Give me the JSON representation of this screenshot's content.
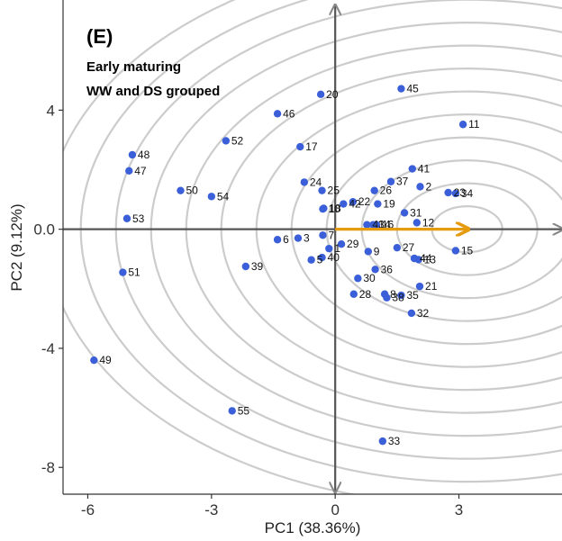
{
  "chart_data": {
    "type": "scatter",
    "panel_label": "(E)",
    "annotation_lines": [
      "Early maturing",
      "WW and DS grouped"
    ],
    "xlabel": "PC1 (38.36%)",
    "ylabel": "PC2 (9.12%)",
    "xlim": [
      -6.6,
      5.5
    ],
    "ylim": [
      -8.9,
      7.7
    ],
    "xticks": [
      -6,
      -3,
      0,
      3
    ],
    "yticks": [
      -8,
      -4,
      0,
      4
    ],
    "grid": false,
    "point_color": "#3b5fd9",
    "arrow_color": "#e69a0e",
    "circle_color": "#cccccc",
    "axis_line_color": "#555555",
    "loading_arrows": [
      {
        "from": [
          0,
          0
        ],
        "to": [
          3.2,
          0
        ],
        "color": "#e69a0e"
      },
      {
        "from": [
          0,
          0
        ],
        "to": [
          0,
          7.5
        ],
        "color": "#888888"
      },
      {
        "from": [
          0,
          0
        ],
        "to": [
          0,
          -8.8
        ],
        "color": "#888888"
      },
      {
        "from": [
          0,
          0
        ],
        "to": [
          5.5,
          0
        ],
        "color": "#888888"
      }
    ],
    "points": [
      {
        "id": "1",
        "x": -0.15,
        "y": -0.65
      },
      {
        "id": "2",
        "x": 2.06,
        "y": 1.43
      },
      {
        "id": "3",
        "x": -0.9,
        "y": -0.3
      },
      {
        "id": "4",
        "x": 1.92,
        "y": -0.98
      },
      {
        "id": "5",
        "x": -0.58,
        "y": -1.03
      },
      {
        "id": "6",
        "x": -1.4,
        "y": -0.35
      },
      {
        "id": "7",
        "x": -0.3,
        "y": -0.2
      },
      {
        "id": "8",
        "x": 1.2,
        "y": -2.18
      },
      {
        "id": "9",
        "x": 0.8,
        "y": -0.75
      },
      {
        "id": "10",
        "x": -0.3,
        "y": 0.68
      },
      {
        "id": "11",
        "x": 3.1,
        "y": 3.52
      },
      {
        "id": "12",
        "x": 1.98,
        "y": 0.22
      },
      {
        "id": "13",
        "x": 2.02,
        "y": -1.02
      },
      {
        "id": "14",
        "x": 0.92,
        "y": 0.15
      },
      {
        "id": "15",
        "x": 2.92,
        "y": -0.72
      },
      {
        "id": "16",
        "x": 1.0,
        "y": 0.15
      },
      {
        "id": "17",
        "x": -0.85,
        "y": 2.77
      },
      {
        "id": "18",
        "x": -0.28,
        "y": 0.7
      },
      {
        "id": "19",
        "x": 1.03,
        "y": 0.85
      },
      {
        "id": "20",
        "x": -0.35,
        "y": 4.53
      },
      {
        "id": "21",
        "x": 2.05,
        "y": -1.92
      },
      {
        "id": "22",
        "x": 0.43,
        "y": 0.92
      },
      {
        "id": "23",
        "x": 2.74,
        "y": 1.23
      },
      {
        "id": "24",
        "x": -0.75,
        "y": 1.58
      },
      {
        "id": "25",
        "x": -0.32,
        "y": 1.3
      },
      {
        "id": "26",
        "x": 0.95,
        "y": 1.3
      },
      {
        "id": "27",
        "x": 1.5,
        "y": -0.62
      },
      {
        "id": "28",
        "x": 0.45,
        "y": -2.18
      },
      {
        "id": "29",
        "x": 0.15,
        "y": -0.5
      },
      {
        "id": "30",
        "x": 0.55,
        "y": -1.65
      },
      {
        "id": "31",
        "x": 1.68,
        "y": 0.55
      },
      {
        "id": "32",
        "x": 1.85,
        "y": -2.82
      },
      {
        "id": "33",
        "x": 1.15,
        "y": -7.12
      },
      {
        "id": "34",
        "x": 2.92,
        "y": 1.2
      },
      {
        "id": "35",
        "x": 1.6,
        "y": -2.22
      },
      {
        "id": "36",
        "x": 0.97,
        "y": -1.35
      },
      {
        "id": "37",
        "x": 1.35,
        "y": 1.6
      },
      {
        "id": "38",
        "x": 1.25,
        "y": -2.3
      },
      {
        "id": "39",
        "x": -2.17,
        "y": -1.25
      },
      {
        "id": "40",
        "x": -0.32,
        "y": -0.95
      },
      {
        "id": "41",
        "x": 1.87,
        "y": 2.03
      },
      {
        "id": "42",
        "x": 0.2,
        "y": 0.85
      },
      {
        "id": "43",
        "x": 0.77,
        "y": 0.15
      },
      {
        "id": "44",
        "x": 1.92,
        "y": -0.98
      },
      {
        "id": "45",
        "x": 1.6,
        "y": 4.72
      },
      {
        "id": "46",
        "x": -1.4,
        "y": 3.88
      },
      {
        "id": "47",
        "x": -5.0,
        "y": 1.96
      },
      {
        "id": "48",
        "x": -4.92,
        "y": 2.5
      },
      {
        "id": "49",
        "x": -5.85,
        "y": -4.4
      },
      {
        "id": "50",
        "x": -3.75,
        "y": 1.3
      },
      {
        "id": "51",
        "x": -5.15,
        "y": -1.45
      },
      {
        "id": "52",
        "x": -2.65,
        "y": 2.97
      },
      {
        "id": "53",
        "x": -5.05,
        "y": 0.36
      },
      {
        "id": "54",
        "x": -3.0,
        "y": 1.1
      },
      {
        "id": "55",
        "x": -2.5,
        "y": -6.1
      }
    ]
  }
}
